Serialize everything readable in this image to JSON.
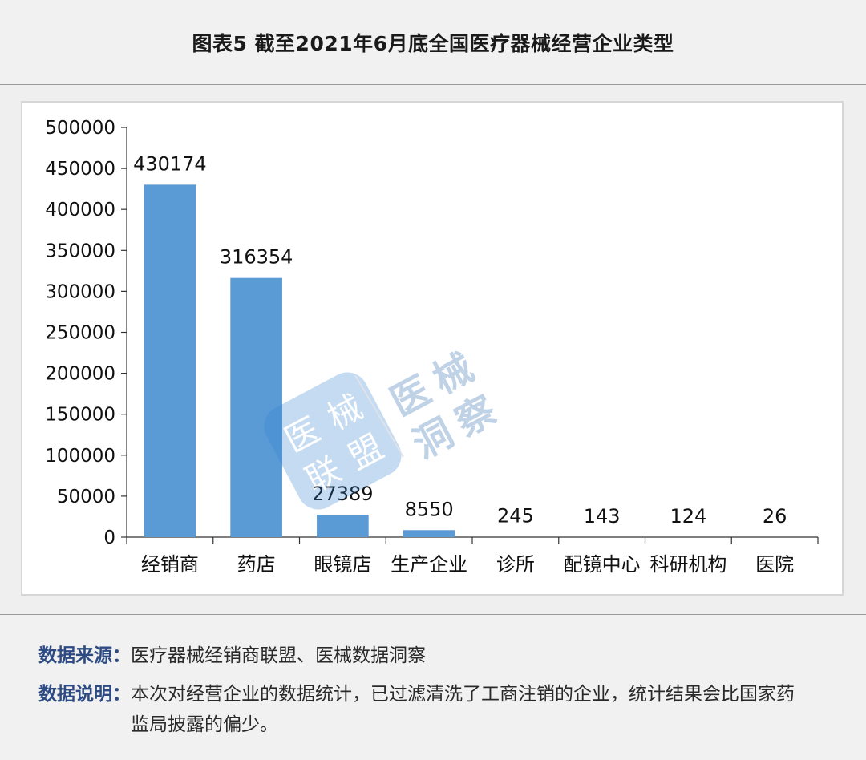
{
  "header": {
    "title": "图表5 截至2021年6月底全国医疗器械经营企业类型"
  },
  "watermark": {
    "badge_chars": [
      "医",
      "械",
      "联",
      "盟"
    ],
    "side_chars": [
      "医",
      "械",
      "洞",
      "察"
    ]
  },
  "chart_data": {
    "type": "bar",
    "categories": [
      "经销商",
      "药店",
      "眼镜店",
      "生产企业",
      "诊所",
      "配镜中心",
      "科研机构",
      "医院"
    ],
    "values": [
      430174,
      316354,
      27389,
      8550,
      245,
      143,
      124,
      26
    ],
    "title": "",
    "xlabel": "",
    "ylabel": "",
    "ylim": [
      0,
      500000
    ],
    "yticks": [
      0,
      50000,
      100000,
      150000,
      200000,
      250000,
      300000,
      350000,
      400000,
      450000,
      500000
    ],
    "bar_color": "#5b9bd5",
    "grid": false,
    "legend": "none"
  },
  "footer": {
    "source_label": "数据来源：",
    "source_text": "医疗器械经销商联盟、医械数据洞察",
    "note_label": "数据说明：",
    "note_text": "本次对经营企业的数据统计，已过滤清洗了工商注销的企业，统计结果会比国家药监局披露的偏少。"
  }
}
